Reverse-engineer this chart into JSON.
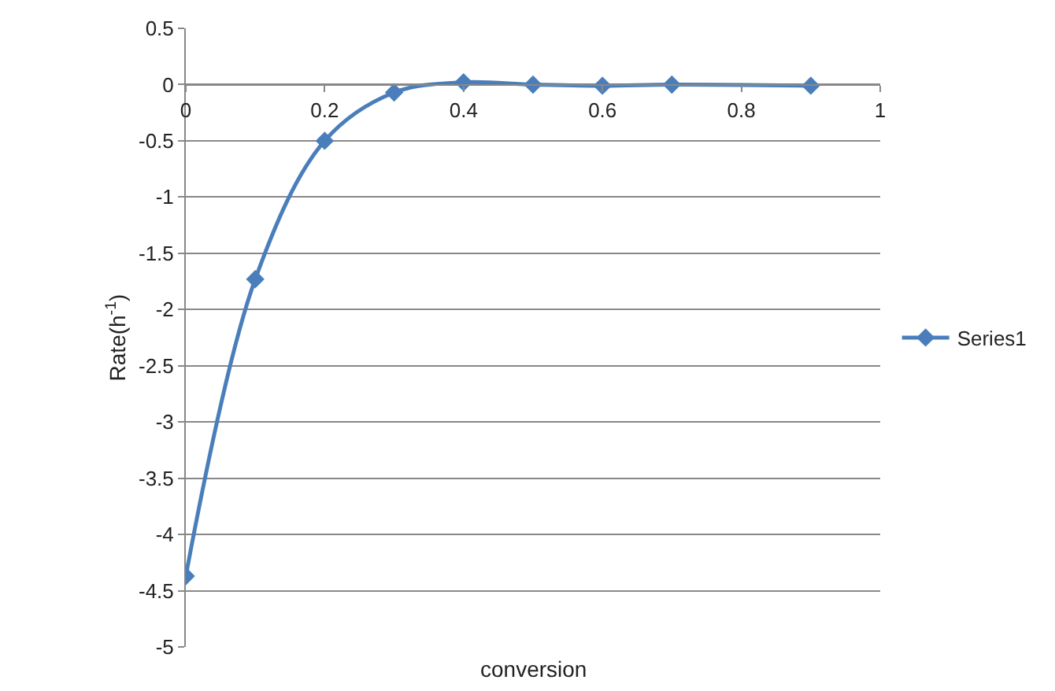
{
  "chart_data": {
    "type": "line",
    "xlabel": "conversion",
    "ylabel": "Rate(h$^{-1}$)",
    "x": [
      0,
      0.1,
      0.2,
      0.3,
      0.4,
      0.5,
      0.6,
      0.7,
      0.9
    ],
    "series": [
      {
        "name": "Series1",
        "color": "#4a7ebb",
        "values": [
          -4.37,
          -1.73,
          -0.5,
          -0.07,
          0.02,
          0,
          -0.01,
          0,
          -0.01
        ]
      }
    ],
    "xlim": [
      0,
      1
    ],
    "xticks": [
      0,
      0.2,
      0.4,
      0.6,
      0.8,
      1
    ],
    "ylim": [
      -5,
      0.5
    ],
    "yticks": [
      -5,
      -4.5,
      -4,
      -3.5,
      -3,
      -2.5,
      -2,
      -1.5,
      -1,
      -0.5,
      0,
      0.5
    ],
    "grid": "y",
    "legend": "right",
    "marker": "diamond",
    "line_style": "solid"
  }
}
